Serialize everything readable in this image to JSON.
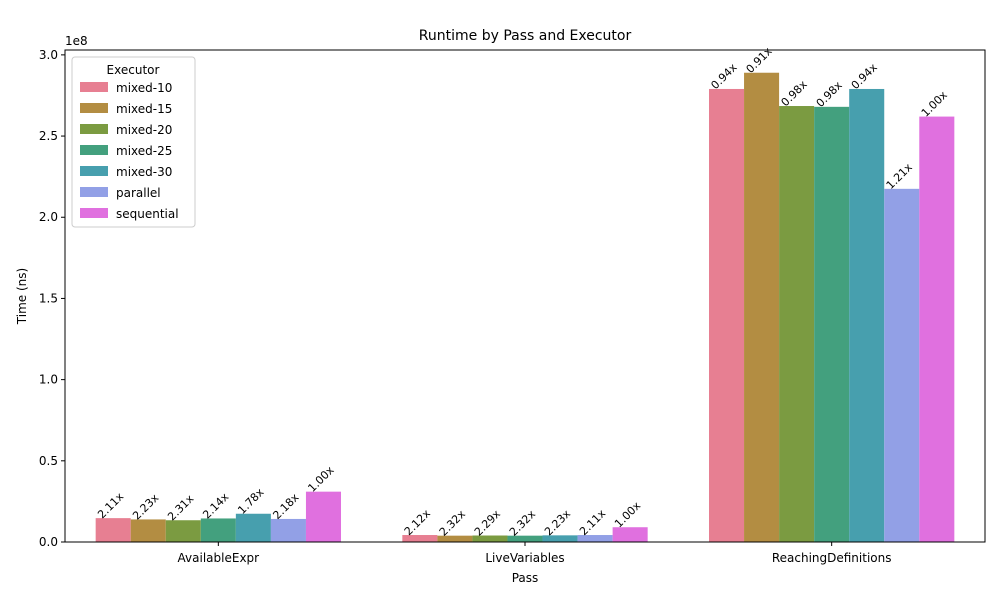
{
  "chart_data": {
    "type": "bar",
    "title": "Runtime by Pass and Executor",
    "xlabel": "Pass",
    "ylabel": "Time (ns)",
    "y_offset_text": "1e8",
    "y_scale": 100000000,
    "ylim": [
      0,
      303000000
    ],
    "yticks": [
      0,
      50000000,
      100000000,
      150000000,
      200000000,
      250000000,
      300000000
    ],
    "ytick_labels": [
      "0.0",
      "0.5",
      "1.0",
      "1.5",
      "2.0",
      "2.5",
      "3.0"
    ],
    "categories": [
      "AvailableExpr",
      "LiveVariables",
      "ReachingDefinitions"
    ],
    "legend": {
      "title": "Executor",
      "placement": "top-left"
    },
    "grid": false,
    "series": [
      {
        "name": "mixed-10",
        "color": "#e77f92",
        "values": [
          14700000,
          4300000,
          279000000
        ],
        "labels": [
          "2.11x",
          "2.12x",
          "0.94x"
        ]
      },
      {
        "name": "mixed-15",
        "color": "#b38d42",
        "values": [
          13900000,
          3900000,
          289000000
        ],
        "labels": [
          "2.23x",
          "2.32x",
          "0.91x"
        ]
      },
      {
        "name": "mixed-20",
        "color": "#7b9b41",
        "values": [
          13400000,
          4000000,
          268500000
        ],
        "labels": [
          "2.31x",
          "2.29x",
          "0.98x"
        ]
      },
      {
        "name": "mixed-25",
        "color": "#43a07e",
        "values": [
          14500000,
          3900000,
          268000000
        ],
        "labels": [
          "2.14x",
          "2.32x",
          "0.98x"
        ]
      },
      {
        "name": "mixed-30",
        "color": "#479fae",
        "values": [
          17400000,
          4100000,
          279000000
        ],
        "labels": [
          "1.78x",
          "2.23x",
          "0.94x"
        ]
      },
      {
        "name": "parallel",
        "color": "#92a0e6",
        "values": [
          14200000,
          4300000,
          217500000
        ],
        "labels": [
          "2.18x",
          "2.11x",
          "1.21x"
        ]
      },
      {
        "name": "sequential",
        "color": "#e070df",
        "values": [
          31000000,
          9100000,
          262000000
        ],
        "labels": [
          "1.00x",
          "1.00x",
          "1.00x"
        ]
      }
    ]
  }
}
